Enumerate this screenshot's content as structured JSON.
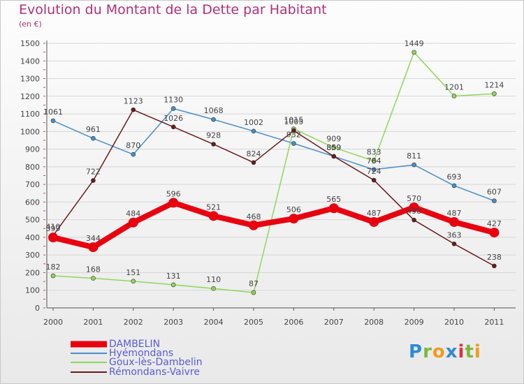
{
  "header": {
    "title": "Evolution du Montant de la Dette par Habitant",
    "unit": "(en €)"
  },
  "logo": {
    "text": "Proxiti",
    "letters": [
      "P",
      "r",
      "o",
      "x",
      "i",
      "t",
      "i"
    ],
    "colors": [
      "#2e8bd6",
      "#7ab83c",
      "#f29a1a",
      "#2e8bd6",
      "#d9343a",
      "#7ab83c",
      "#f29a1a"
    ]
  },
  "chart_data": {
    "type": "line",
    "title": "Evolution du Montant de la Dette par Habitant",
    "subtitle": "(en €)",
    "xlabel": "",
    "ylabel": "",
    "categories": [
      "2000",
      "2001",
      "2002",
      "2003",
      "2004",
      "2005",
      "2006",
      "2007",
      "2008",
      "2009",
      "2010",
      "2011"
    ],
    "ylim": [
      0,
      1500
    ],
    "yticks": [
      0,
      100,
      200,
      300,
      400,
      500,
      600,
      700,
      800,
      900,
      1000,
      1100,
      1200,
      1300,
      1400,
      1500
    ],
    "grid": true,
    "legend_position": "bottom-left",
    "series": [
      {
        "name": "DAMBELIN",
        "color": "#e8000f",
        "values": [
          399,
          344,
          484,
          596,
          521,
          468,
          506,
          565,
          487,
          570,
          487,
          427
        ]
      },
      {
        "name": "Hyémondans",
        "color": "#4a8ec8",
        "values": [
          1061,
          961,
          870,
          1130,
          1068,
          1002,
          932,
          859,
          784,
          811,
          693,
          607
        ]
      },
      {
        "name": "Goux-lès-Dambelin",
        "color": "#8fd65a",
        "values": [
          182,
          168,
          151,
          131,
          110,
          87,
          1015,
          909,
          833,
          1449,
          1201,
          1214
        ]
      },
      {
        "name": "Rémondans-Vaivre",
        "color": "#6b1a1a",
        "values": [
          410,
          722,
          1123,
          1026,
          928,
          824,
          1005,
          859,
          724,
          498,
          363,
          238
        ]
      }
    ]
  }
}
